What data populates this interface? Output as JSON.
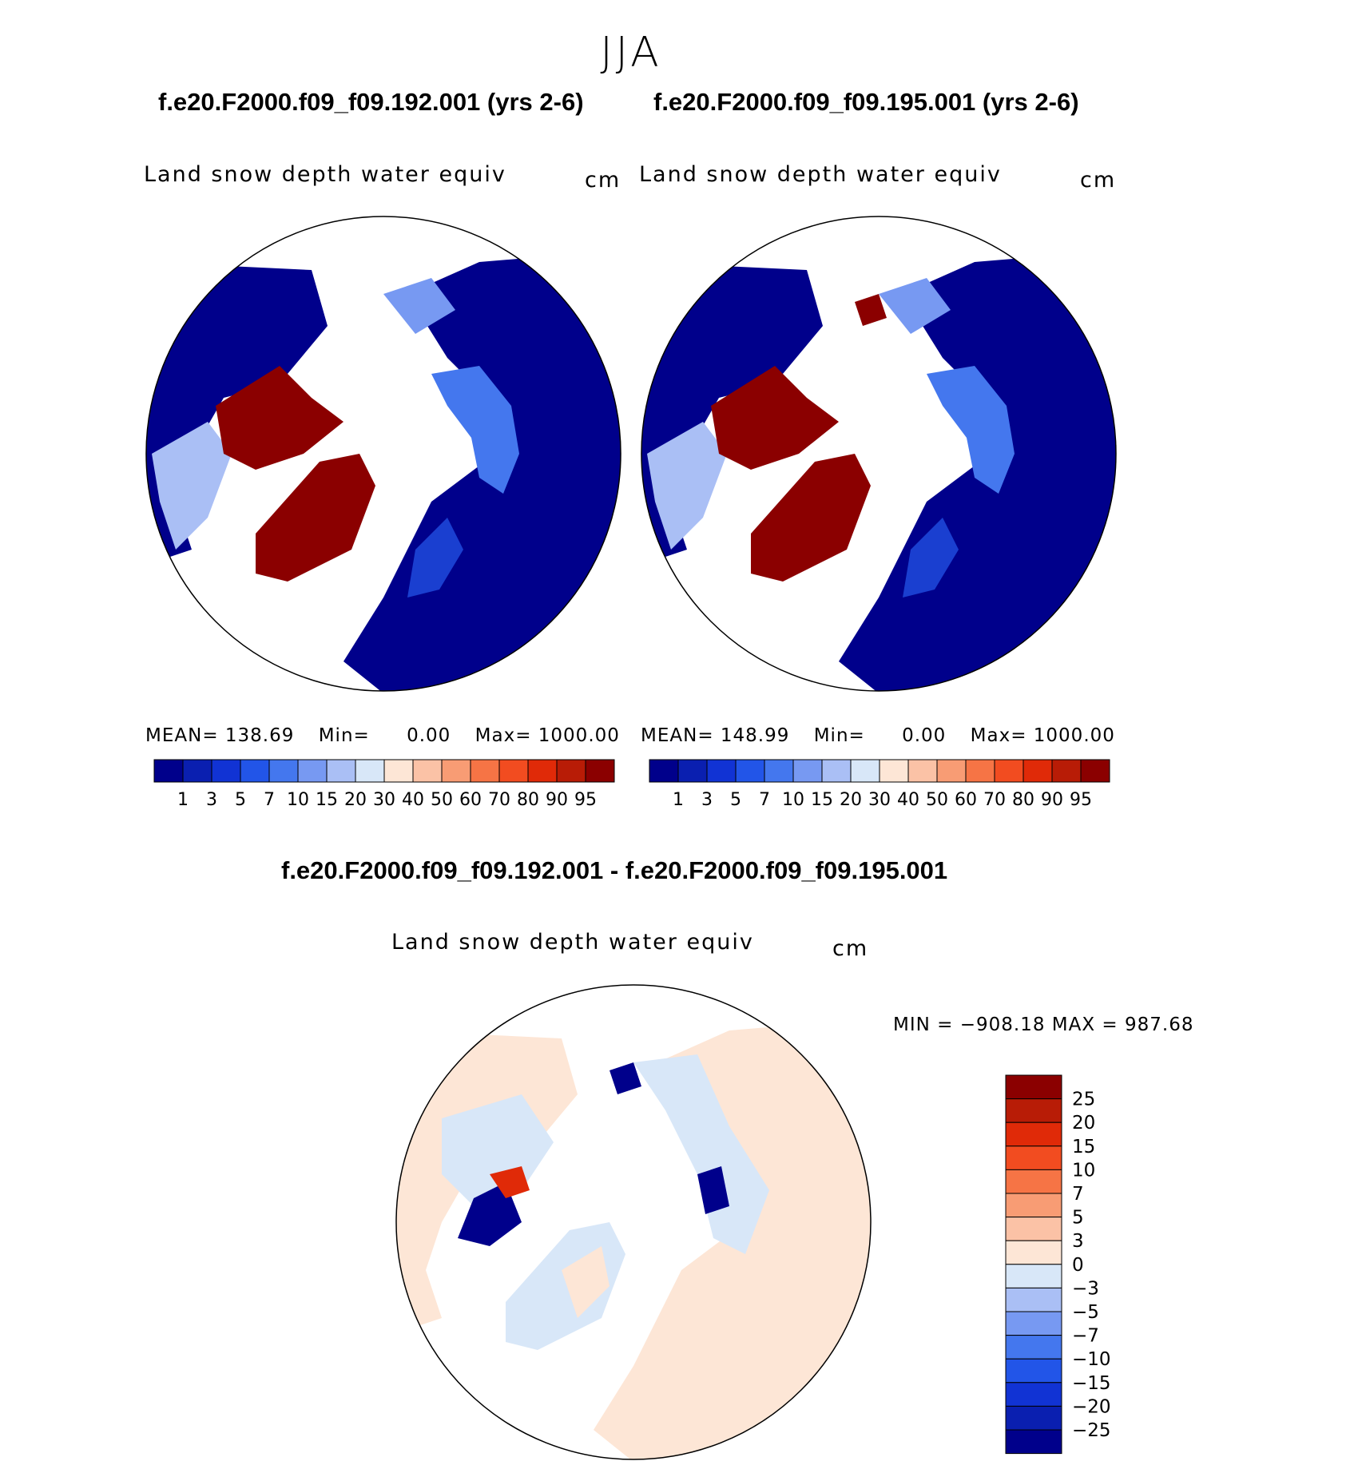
{
  "season": "JJA",
  "panels": [
    {
      "id": "case-192",
      "run_title": "f.e20.F2000.f09_f09.192.001 (yrs 2-6)",
      "field": "Land snow depth water equiv",
      "units": "cm",
      "stats": {
        "mean_label": "MEAN=",
        "mean": "138.69",
        "min_label": "Min=",
        "min": "0.00",
        "max_label": "Max=",
        "max": "1000.00"
      }
    },
    {
      "id": "case-195",
      "run_title": "f.e20.F2000.f09_f09.195.001 (yrs 2-6)",
      "field": "Land snow depth water equiv",
      "units": "cm",
      "stats": {
        "mean_label": "MEAN=",
        "mean": "148.99",
        "min_label": "Min=",
        "min": "0.00",
        "max_label": "Max=",
        "max": "1000.00"
      }
    }
  ],
  "abs_colorbar": {
    "labels": [
      "1",
      "3",
      "5",
      "7",
      "10",
      "15",
      "20",
      "30",
      "40",
      "50",
      "60",
      "70",
      "80",
      "90",
      "95"
    ],
    "colors": [
      "#00008b",
      "#0a1fb0",
      "#1133d4",
      "#2255e8",
      "#4477ee",
      "#7799f2",
      "#aabff5",
      "#d8e7f8",
      "#fde6d6",
      "#fbc2a6",
      "#f89c74",
      "#f67445",
      "#f24c20",
      "#e02a08",
      "#b81c06",
      "#8b0000"
    ]
  },
  "difference": {
    "title": "f.e20.F2000.f09_f09.192.001 - f.e20.F2000.f09_f09.195.001",
    "field": "Land snow depth water equiv",
    "units": "cm",
    "minmax": "MIN = −908.18 MAX = 987.68",
    "colorbar": {
      "labels": [
        "25",
        "20",
        "15",
        "10",
        "7",
        "5",
        "3",
        "0",
        "−3",
        "−5",
        "−7",
        "−10",
        "−15",
        "−20",
        "−25"
      ],
      "colors": [
        "#8b0000",
        "#b81c06",
        "#e02a08",
        "#f24c20",
        "#f67445",
        "#f89c74",
        "#fbc2a6",
        "#fde6d6",
        "#d8e7f8",
        "#aabff5",
        "#7799f2",
        "#4477ee",
        "#2255e8",
        "#1133d4",
        "#0a1fb0",
        "#00008b"
      ]
    }
  },
  "map_colors": {
    "snow_low": "#00008b",
    "snow_mid": "#1a3fd0",
    "snow_light": "#aabff5",
    "ice_high": "#8b0000",
    "diff_pos": "#fde6d6",
    "diff_neg": "#d8e7f8",
    "diff_strong_pos": "#e02a08",
    "diff_strong_neg": "#00008b"
  }
}
